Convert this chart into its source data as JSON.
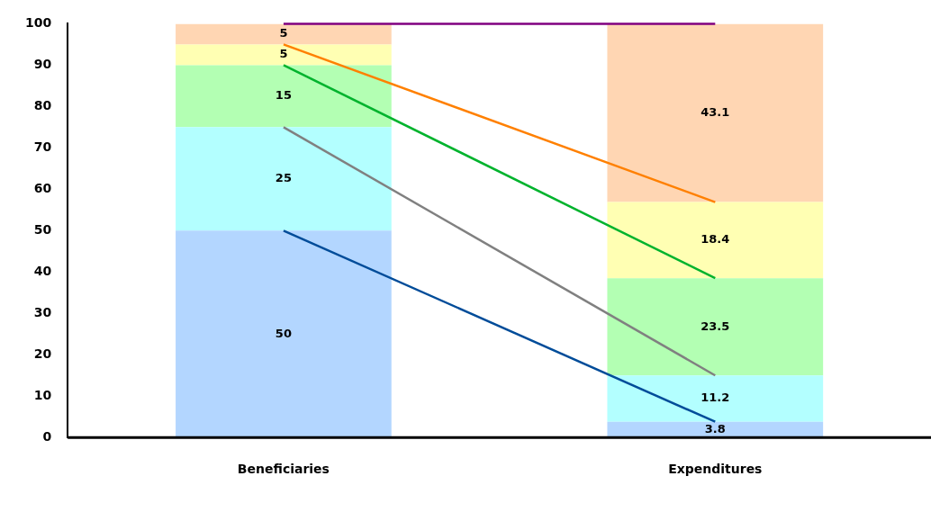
{
  "chart_data": {
    "type": "bar",
    "stacked": true,
    "categories": [
      "Beneficiaries",
      "Expenditures"
    ],
    "ylim": [
      0,
      100
    ],
    "yticks": [
      0,
      10,
      20,
      30,
      40,
      50,
      60,
      70,
      80,
      90,
      100
    ],
    "grid": false,
    "legend": false,
    "marker": "none",
    "series": [
      {
        "color": "#b3d6ff",
        "values": [
          50,
          3.8
        ],
        "value_labels": [
          "50",
          "3.8"
        ]
      },
      {
        "color": "#b3ffff",
        "values": [
          25,
          11.2
        ],
        "value_labels": [
          "25",
          "11.2"
        ]
      },
      {
        "color": "#b3ffb3",
        "values": [
          15,
          23.5
        ],
        "value_labels": [
          "15",
          "23.5"
        ]
      },
      {
        "color": "#ffffb3",
        "values": [
          5,
          18.4
        ],
        "value_labels": [
          "5",
          "18.4"
        ]
      },
      {
        "color": "#ffd6b3",
        "values": [
          5,
          43.1
        ],
        "value_labels": [
          "5",
          "43.1"
        ]
      },
      {
        "type": "line",
        "color": "#004c99",
        "values": [
          50,
          3.8
        ]
      },
      {
        "type": "line",
        "color": "#808080",
        "values": [
          75,
          15
        ]
      },
      {
        "type": "line",
        "color": "#00b32d",
        "values": [
          90,
          38.5
        ]
      },
      {
        "type": "line",
        "color": "#ff8000",
        "values": [
          95,
          56.9
        ]
      },
      {
        "type": "line",
        "color": "#800080",
        "values": [
          100,
          100
        ]
      }
    ]
  }
}
